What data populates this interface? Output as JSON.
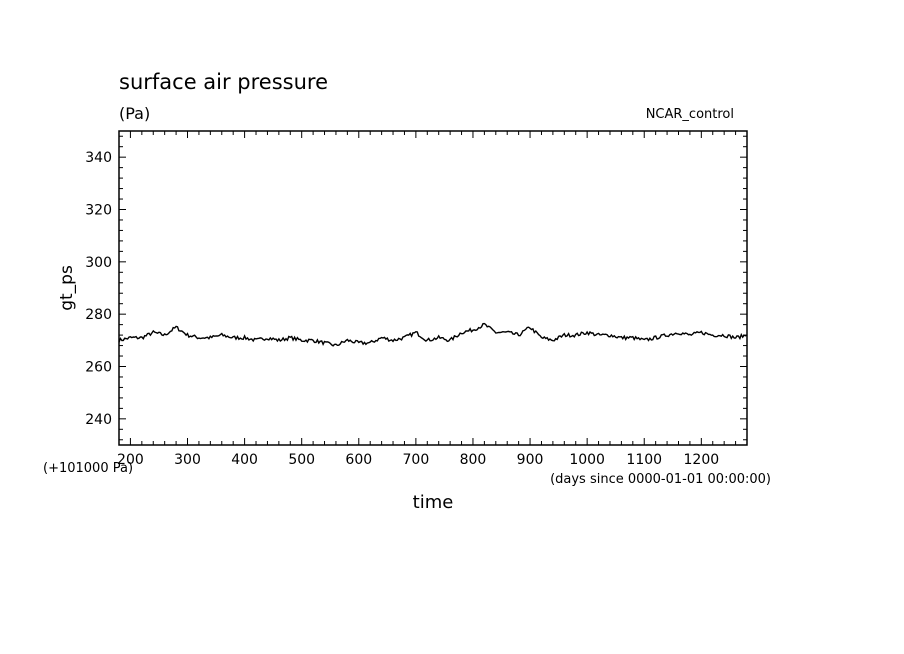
{
  "chart_data": {
    "type": "line",
    "title": "surface air pressure",
    "units": "(Pa)",
    "experiment": "NCAR_control",
    "xlabel": "time",
    "x_units": "(days since 0000-01-01 00:00:00)",
    "ylabel": "gt_ps",
    "y_offset_note": "(+101000 Pa)",
    "xlim": [
      180,
      1280
    ],
    "ylim": [
      230,
      350
    ],
    "x_ticks": [
      200,
      300,
      400,
      500,
      600,
      700,
      800,
      900,
      1000,
      1100,
      1200
    ],
    "y_ticks": [
      240,
      260,
      280,
      300,
      320,
      340
    ],
    "grid": false,
    "series": [
      {
        "color": "#000000",
        "x": [
          180,
          200,
          220,
          240,
          260,
          280,
          300,
          320,
          340,
          360,
          380,
          400,
          420,
          440,
          460,
          480,
          500,
          520,
          540,
          560,
          580,
          600,
          620,
          640,
          660,
          680,
          700,
          720,
          740,
          760,
          780,
          800,
          820,
          840,
          860,
          880,
          900,
          920,
          940,
          960,
          980,
          1000,
          1020,
          1040,
          1060,
          1080,
          1100,
          1120,
          1140,
          1160,
          1180,
          1200,
          1220,
          1240,
          1260,
          1280
        ],
        "y": [
          270,
          271,
          271,
          273,
          272,
          275,
          272,
          271,
          271,
          272,
          271,
          271,
          270,
          271,
          270,
          271,
          270,
          270,
          269,
          268,
          270,
          269,
          269,
          271,
          270,
          271,
          273,
          270,
          271,
          270,
          273,
          274,
          276,
          273,
          273,
          272,
          275,
          271,
          270,
          272,
          272,
          273,
          272,
          272,
          271,
          271,
          270,
          271,
          272,
          273,
          272,
          273,
          272,
          272,
          271,
          272
        ]
      }
    ]
  }
}
